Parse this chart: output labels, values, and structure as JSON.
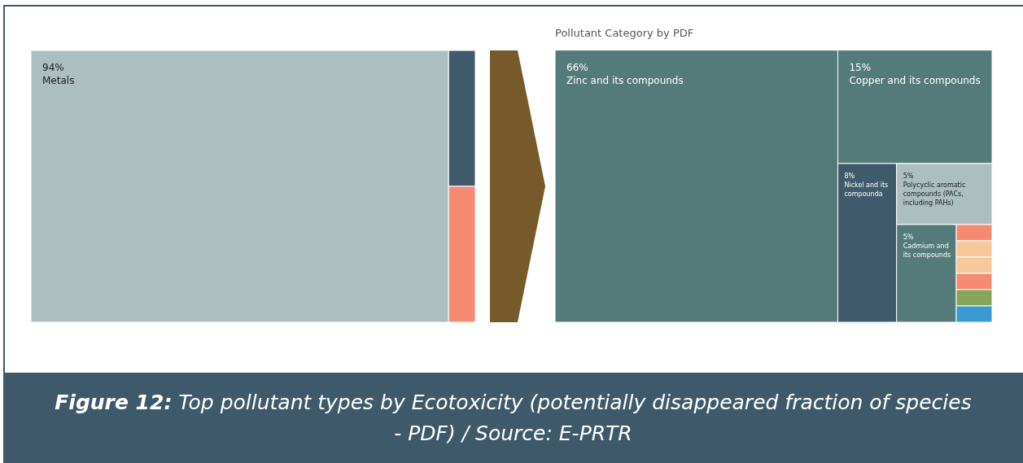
{
  "chart_data": [
    {
      "type": "other",
      "categories": [
        "Metals",
        null,
        null
      ],
      "values": [
        94,
        null,
        null
      ],
      "value_labels": [
        "94%",
        null,
        null
      ],
      "colors": [
        "#abbfc1",
        "#3f5b6b",
        "#f48a72"
      ]
    },
    {
      "type": "other",
      "title": "Pollutant Category by PDF",
      "categories": [
        "Zinc and its compounds",
        "Copper and its compounds",
        "Nickel and its compounda",
        "Polycyclic aromatic compounds (PACs, including PAHs)",
        "Cadmium and its compounds",
        null,
        null,
        null,
        null,
        null,
        null
      ],
      "values": [
        66,
        15,
        8,
        5,
        5,
        null,
        null,
        null,
        null,
        null,
        null
      ],
      "value_labels": [
        "66%",
        "15%",
        "8%",
        "5%",
        "5%",
        null,
        null,
        null,
        null,
        null,
        null
      ],
      "colors": [
        "#547a7a",
        "#547a7a",
        "#3f5b6b",
        "#abbfc1",
        "#547a7a",
        "#f48a72",
        "#f6c89a",
        "#f6c89a",
        "#f48a72",
        "#8aa35a",
        "#3a9ad0"
      ],
      "annotations": [
        "Figure 12: Top pollutant types by Ecotoxicity (potentially disappeared fraction of species - PDF) / Source: E-PRTR"
      ]
    }
  ]
}
